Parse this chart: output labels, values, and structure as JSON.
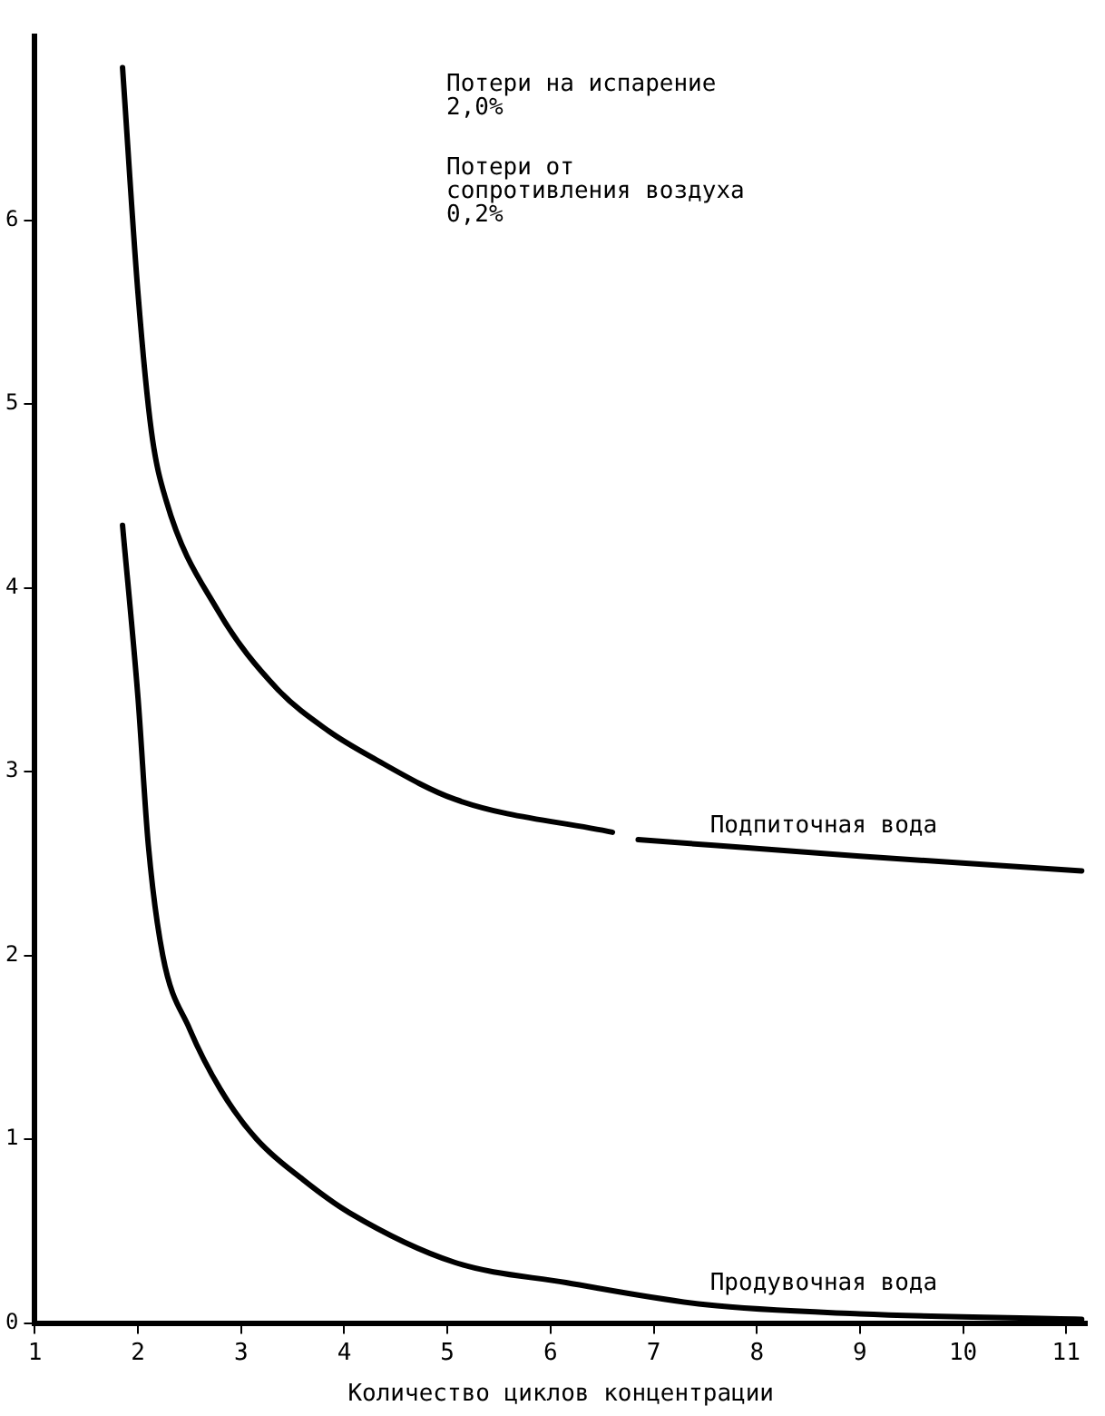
{
  "chart_data": {
    "type": "line",
    "xlabel": "Количество циклов концентрации",
    "annotations": [
      "Потери на испарение\n2,0%",
      "Потери от\nсопротивления воздуха\n0,2%"
    ],
    "xlim": [
      1,
      11.2
    ],
    "xticks": [
      1,
      2,
      3,
      4,
      5,
      6,
      7,
      8,
      9,
      10,
      11
    ],
    "ylim": [
      0,
      7
    ],
    "yticks": [
      0,
      1,
      2,
      3,
      4,
      5,
      6
    ],
    "grid": false,
    "legend": false,
    "marker": "none",
    "line_style": "solid",
    "series": [
      {
        "name": "Подпиточная вода",
        "color": "#000000",
        "x": [
          1.85,
          2.0,
          2.13,
          2.27,
          2.77,
          3.35,
          3.85,
          4.26,
          5.07,
          6.6,
          6.72,
          6.85,
          9.0,
          11.15
        ],
        "values": [
          6.83,
          5.6,
          4.85,
          4.48,
          3.88,
          3.45,
          3.22,
          3.08,
          2.85,
          2.67,
          null,
          2.63,
          2.54,
          2.46
        ]
      },
      {
        "name": "Продувочная вода",
        "color": "#000000",
        "x": [
          1.85,
          2.0,
          2.1,
          2.24,
          2.5,
          2.8,
          3.15,
          3.6,
          4.05,
          5.07,
          6.15,
          7.5,
          9.0,
          11.15
        ],
        "values": [
          4.34,
          3.4,
          2.6,
          2.0,
          1.6,
          1.27,
          1.0,
          0.78,
          0.6,
          0.33,
          0.22,
          0.1,
          0.05,
          0.02
        ]
      }
    ]
  }
}
